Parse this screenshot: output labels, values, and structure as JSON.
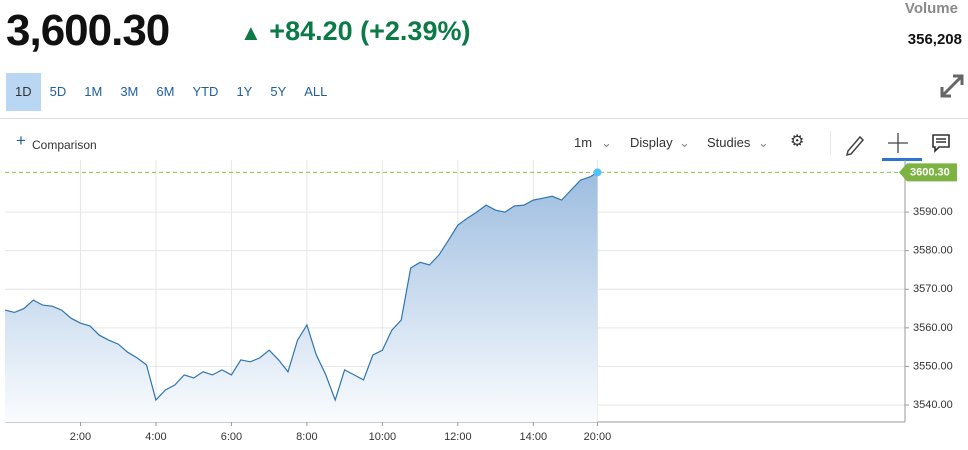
{
  "header": {
    "price": "3,600.30",
    "change": "+84.20",
    "change_pct": "(+2.39%)",
    "volume_label": "Volume",
    "volume": "356,208"
  },
  "ranges": [
    "1D",
    "5D",
    "1M",
    "3M",
    "6M",
    "YTD",
    "1Y",
    "5Y",
    "ALL"
  ],
  "toolbar": {
    "comparison": "Comparison",
    "interval": "1m",
    "display": "Display",
    "studies": "Studies"
  },
  "chart_data": {
    "type": "area",
    "last_label": "3600.30",
    "x": [
      0,
      0.25,
      0.5,
      0.75,
      1,
      1.25,
      1.5,
      1.75,
      2,
      2.25,
      2.5,
      2.75,
      3,
      3.25,
      3.5,
      3.75,
      4,
      4.25,
      4.5,
      4.75,
      5,
      5.25,
      5.5,
      5.75,
      6,
      6.25,
      6.5,
      6.75,
      7,
      7.25,
      7.5,
      7.75,
      8,
      8.25,
      8.5,
      8.75,
      9,
      9.25,
      9.5,
      9.75,
      10,
      10.25,
      10.5,
      10.75,
      11,
      11.25,
      11.5,
      11.75,
      12,
      12.25,
      12.5,
      12.75,
      13,
      13.25,
      13.5,
      13.75,
      14,
      14.25,
      14.5,
      14.75,
      15,
      15.25,
      15.5,
      15.7
    ],
    "series": [
      {
        "color": "#2e75b0",
        "values": [
          3564.6,
          3564,
          3565,
          3567.2,
          3565.9,
          3565.6,
          3564.6,
          3562.5,
          3561.2,
          3560.5,
          3558.1,
          3556.8,
          3555.8,
          3553.7,
          3552.2,
          3550.4,
          3541.3,
          3543.9,
          3545.2,
          3547.8,
          3547,
          3548.6,
          3547.8,
          3549.1,
          3547.8,
          3551.7,
          3551.2,
          3552.2,
          3554.2,
          3551.7,
          3548.6,
          3556.8,
          3560.7,
          3553,
          3547.8,
          3541.3,
          3549.1,
          3547.8,
          3546.5,
          3553,
          3554.2,
          3559.4,
          3562,
          3575.5,
          3577,
          3576.3,
          3578.9,
          3582.7,
          3586.6,
          3588.4,
          3590,
          3591.8,
          3590.5,
          3590,
          3591.6,
          3591.8,
          3593.1,
          3593.6,
          3594.1,
          3593.1,
          3595.7,
          3598.3,
          3599.1,
          3600.3
        ]
      }
    ],
    "xlim": [
      0,
      23.85
    ],
    "ylim": [
      3535.6,
      3603.5
    ],
    "xticks": [
      {
        "value": 2,
        "label": "2:00"
      },
      {
        "value": 4,
        "label": "4:00"
      },
      {
        "value": 6,
        "label": "6:00"
      },
      {
        "value": 8,
        "label": "8:00"
      },
      {
        "value": 10,
        "label": "10:00"
      },
      {
        "value": 12,
        "label": "12:00"
      },
      {
        "value": 14,
        "label": "14:00"
      },
      {
        "value": 15.7,
        "label": "20:00"
      }
    ],
    "yticks": [
      {
        "value": 3540,
        "label": "3540.00"
      },
      {
        "value": 3550,
        "label": "3550.00"
      },
      {
        "value": 3560,
        "label": "3560.00"
      },
      {
        "value": 3570,
        "label": "3570.00"
      },
      {
        "value": 3580,
        "label": "3580.00"
      },
      {
        "value": 3590,
        "label": "3590.00"
      }
    ],
    "grid": true
  }
}
